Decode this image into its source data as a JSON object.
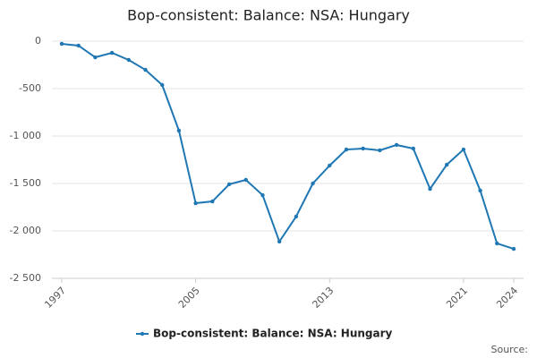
{
  "chart_data": {
    "type": "line",
    "title": "Bop-consistent: Balance: NSA: Hungary",
    "x": [
      1997,
      1998,
      1999,
      2000,
      2001,
      2002,
      2003,
      2004,
      2005,
      2006,
      2007,
      2008,
      2009,
      2010,
      2011,
      2012,
      2013,
      2014,
      2015,
      2016,
      2017,
      2018,
      2019,
      2020,
      2021,
      2022,
      2023,
      2024
    ],
    "series": [
      {
        "name": "Bop-consistent: Balance: NSA: Hungary",
        "color": "#1f77b4",
        "values": [
          -28,
          -47,
          -170,
          -123,
          -198,
          -302,
          -462,
          -943,
          -1708,
          -1689,
          -1509,
          -1462,
          -1623,
          -2113,
          -1849,
          -1500,
          -1311,
          -1142,
          -1132,
          -1151,
          -1094,
          -1132,
          -1557,
          -1302,
          -1142,
          -1575,
          -2132,
          -2189
        ]
      }
    ],
    "xlim": [
      1997,
      2024
    ],
    "xticks": [
      1997,
      2005,
      2013,
      2021,
      2024
    ],
    "ylim": [
      -2500,
      0
    ],
    "yticks": [
      0,
      -500,
      {
        "value": -1000,
        "label": "-1 000"
      },
      {
        "value": -1500,
        "label": "-1 500"
      },
      {
        "value": -2000,
        "label": "-2 000"
      },
      {
        "value": -2500,
        "label": "-2 500"
      }
    ],
    "grid": true,
    "source_label": "Source:"
  }
}
